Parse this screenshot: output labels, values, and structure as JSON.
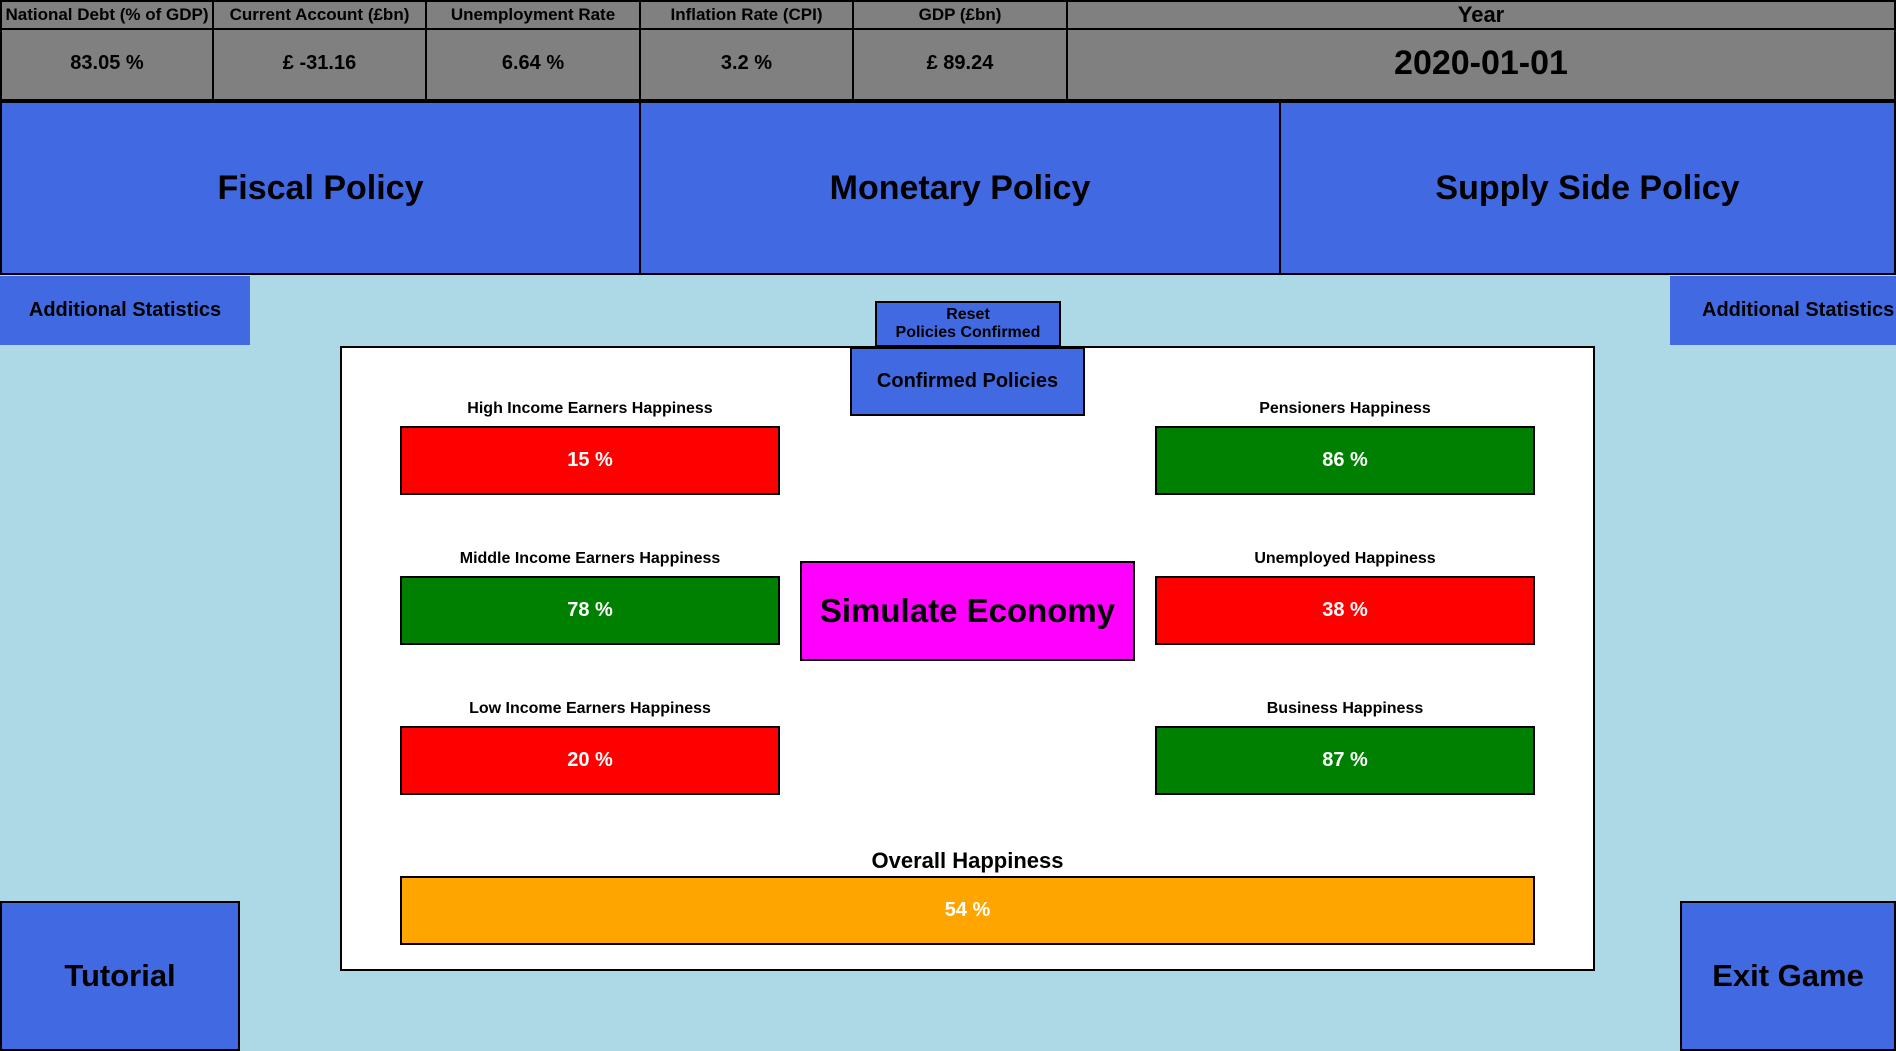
{
  "stats": [
    {
      "label": "National Debt (% of GDP)",
      "value": "83.05 %"
    },
    {
      "label": "Current Account (£bn)",
      "value": "£ -31.16"
    },
    {
      "label": "Unemployment Rate",
      "value": "6.64 %"
    },
    {
      "label": "Inflation Rate (CPI)",
      "value": "3.2 %"
    },
    {
      "label": "GDP (£bn)",
      "value": "£ 89.24"
    }
  ],
  "year": {
    "label": "Year",
    "value": "2020-01-01"
  },
  "policies": {
    "fiscal": "Fiscal Policy",
    "monetary": "Monetary Policy",
    "supply": "Supply Side Policy"
  },
  "additional_stats_left": "Additional Statistics",
  "additional_stats_right": "Additional Statistics",
  "reset_button": {
    "line1": "Reset",
    "line2": "Policies Confirmed"
  },
  "confirmed_policies": "Confirmed Policies",
  "simulate_button": "Simulate Economy",
  "happiness": {
    "high_income": {
      "label": "High Income Earners Happiness",
      "value": "15 %",
      "level": 15
    },
    "middle_income": {
      "label": "Middle Income Earners Happiness",
      "value": "78 %",
      "level": 78
    },
    "low_income": {
      "label": "Low Income Earners Happiness",
      "value": "20 %",
      "level": 20
    },
    "pensioners": {
      "label": "Pensioners Happiness",
      "value": "86 %",
      "level": 86
    },
    "unemployed": {
      "label": "Unemployed Happiness",
      "value": "38 %",
      "level": 38
    },
    "business": {
      "label": "Business Happiness",
      "value": "87 %",
      "level": 87
    },
    "overall": {
      "label": "Overall Happiness",
      "value": "54 %",
      "level": 54
    }
  },
  "colors": {
    "background": "#add8e6",
    "button_blue": "#4169e1",
    "stat_grey": "#808080",
    "unhappy": "#ff0000",
    "happy": "#008000",
    "overall": "#ffa500",
    "simulate": "#ff00ff"
  },
  "tutorial_button": "Tutorial",
  "exit_button": "Exit Game"
}
